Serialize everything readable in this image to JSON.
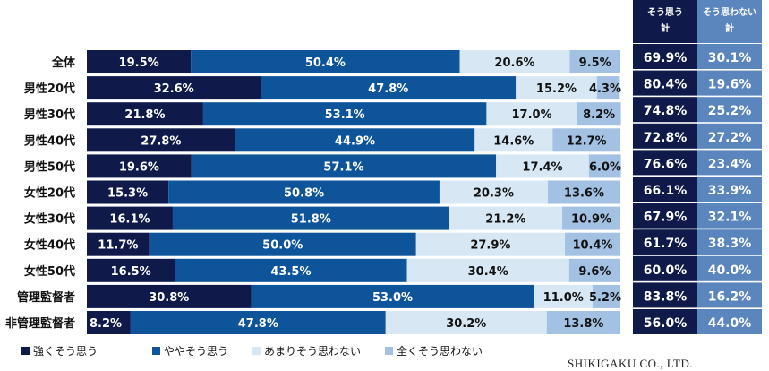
{
  "chart_data": {
    "type": "bar",
    "orientation": "horizontal",
    "stacked": true,
    "categories": [
      "全体",
      "男性20代",
      "男性30代",
      "男性40代",
      "男性50代",
      "女性20代",
      "女性30代",
      "女性40代",
      "女性50代",
      "管理監督者",
      "非管理監督者"
    ],
    "series": [
      {
        "name": "強くそう思う",
        "color": "#0f1a4a",
        "label_color": "#ffffff",
        "values": [
          19.5,
          32.6,
          21.8,
          27.8,
          19.6,
          15.3,
          16.1,
          11.7,
          16.5,
          30.8,
          8.2
        ],
        "labels": [
          "19.5%",
          "32.6%",
          "21.8%",
          "27.8%",
          "19.6%",
          "15.3%",
          "16.1%",
          "11.7%",
          "16.5%",
          "30.8%",
          "8.2%"
        ]
      },
      {
        "name": "ややそう思う",
        "color": "#0d549b",
        "label_color": "#ffffff",
        "values": [
          50.4,
          47.8,
          53.1,
          44.9,
          57.1,
          50.8,
          51.8,
          50.0,
          43.5,
          53.0,
          47.8
        ],
        "labels": [
          "50.4%",
          "47.8%",
          "53.1%",
          "44.9%",
          "57.1%",
          "50.8%",
          "51.8%",
          "50.0%",
          "43.5%",
          "53.0%",
          "47.8%"
        ]
      },
      {
        "name": "あまりそう思わない",
        "color": "#d7e8f4",
        "label_color": "#111111",
        "values": [
          20.6,
          15.2,
          17.0,
          14.6,
          17.4,
          20.3,
          21.2,
          27.9,
          30.4,
          11.0,
          30.2
        ],
        "labels": [
          "20.6%",
          "15.2%",
          "17.0%",
          "14.6%",
          "17.4%",
          "20.3%",
          "21.2%",
          "27.9%",
          "30.4%",
          "11.0%",
          "30.2%"
        ]
      },
      {
        "name": "全くそう思わない",
        "color": "#a3c2e3",
        "label_color": "#111111",
        "values": [
          9.5,
          4.3,
          8.2,
          12.7,
          6.0,
          13.6,
          10.9,
          10.4,
          9.6,
          5.2,
          13.8
        ],
        "labels": [
          "9.5%",
          "4.3%",
          "8.2%",
          "12.7%",
          "6.0%",
          "13.6%",
          "10.9%",
          "10.4%",
          "9.6%",
          "5.2%",
          "13.8%"
        ]
      }
    ],
    "summary_table": {
      "headers": [
        {
          "lines": [
            "そう思う",
            "計"
          ],
          "bg": "#0f1a4a"
        },
        {
          "lines": [
            "そう思わない",
            "計"
          ],
          "bg": "#5b86bd"
        }
      ],
      "rows": [
        [
          "69.9%",
          "30.1%"
        ],
        [
          "80.4%",
          "19.6%"
        ],
        [
          "74.8%",
          "25.2%"
        ],
        [
          "72.8%",
          "27.2%"
        ],
        [
          "76.6%",
          "23.4%"
        ],
        [
          "66.1%",
          "33.9%"
        ],
        [
          "67.9%",
          "32.1%"
        ],
        [
          "61.7%",
          "38.3%"
        ],
        [
          "60.0%",
          "40.0%"
        ],
        [
          "83.8%",
          "16.2%"
        ],
        [
          "56.0%",
          "44.0%"
        ]
      ]
    },
    "xlim": [
      0,
      100
    ],
    "legend_position": "bottom"
  },
  "footer": {
    "credit": "SHIKIGAKU CO., LTD."
  }
}
